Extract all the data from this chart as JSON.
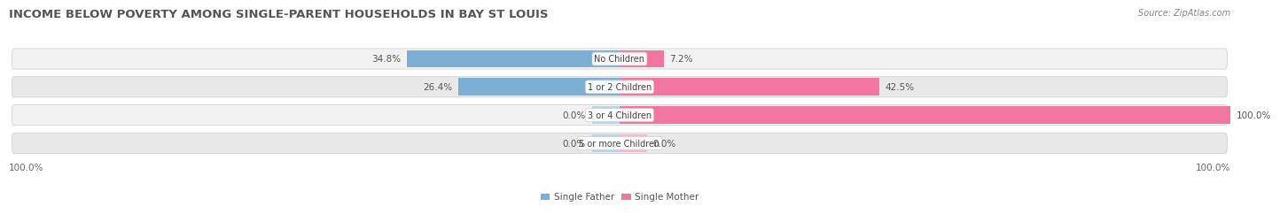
{
  "title": "INCOME BELOW POVERTY AMONG SINGLE-PARENT HOUSEHOLDS IN BAY ST LOUIS",
  "source": "Source: ZipAtlas.com",
  "categories": [
    "No Children",
    "1 or 2 Children",
    "3 or 4 Children",
    "5 or more Children"
  ],
  "single_father": [
    34.8,
    26.4,
    0.0,
    0.0
  ],
  "single_mother": [
    7.2,
    42.5,
    100.0,
    0.0
  ],
  "father_color": "#7BAFD4",
  "mother_color": "#F075A0",
  "father_zero_color": "#B8D4E8",
  "mother_zero_color": "#F9B8CC",
  "row_colors": [
    "#F2F2F2",
    "#E8E8E8"
  ],
  "row_edge_color": "#CCCCCC",
  "legend_father": "Single Father",
  "legend_mother": "Single Mother",
  "axis_max": 100.0,
  "bottom_left_label": "100.0%",
  "bottom_right_label": "100.0%",
  "title_fontsize": 9.5,
  "source_fontsize": 7,
  "label_fontsize": 7.5,
  "bar_label_fontsize": 7.5,
  "category_fontsize": 7,
  "legend_fontsize": 7.5,
  "title_color": "#555555",
  "source_color": "#888888",
  "label_color": "#666666",
  "bar_label_color": "#555555",
  "category_color": "#444444"
}
